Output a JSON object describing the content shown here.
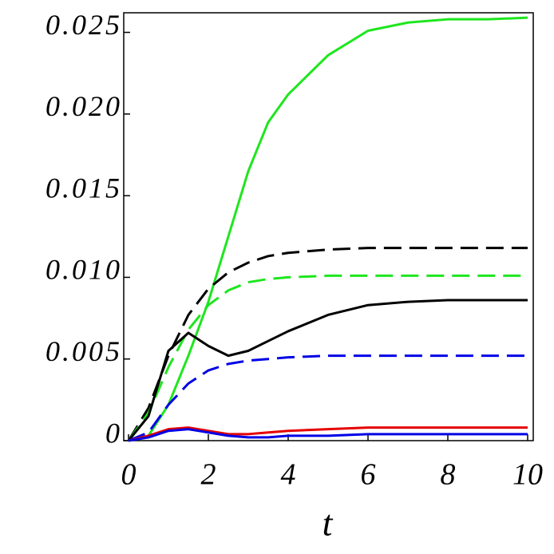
{
  "chart_data": {
    "type": "line",
    "x_label": "t",
    "x": [
      0,
      0.5,
      1,
      1.5,
      2,
      2.5,
      3,
      3.5,
      4,
      5,
      6,
      7,
      8,
      9,
      10
    ],
    "xlim": [
      -0.12,
      10.14
    ],
    "xticks": [
      0,
      2,
      4,
      6,
      8,
      10
    ],
    "ylim": [
      0,
      0.0262
    ],
    "yticks": [
      0,
      0.005,
      {
        "value": 0.01,
        "label": "0.010"
      },
      0.015,
      {
        "value": 0.02,
        "label": "0.020"
      },
      0.025
    ],
    "series": [
      {
        "color": "#1ee61e",
        "dashed": false,
        "values": [
          0,
          0.0003,
          0.0022,
          0.0052,
          0.0085,
          0.0125,
          0.0165,
          0.0195,
          0.0212,
          0.0236,
          0.0251,
          0.0256,
          0.0258,
          0.0258,
          0.0259
        ]
      },
      {
        "color": "#000000",
        "dashed": true,
        "values": [
          0,
          0.002,
          0.0052,
          0.0077,
          0.0093,
          0.0103,
          0.0109,
          0.0113,
          0.0115,
          0.0117,
          0.0118,
          0.0118,
          0.0118,
          0.0118,
          0.0118
        ]
      },
      {
        "color": "#1ee61e",
        "dashed": true,
        "values": [
          0,
          0.0017,
          0.0045,
          0.0068,
          0.0083,
          0.0092,
          0.0097,
          0.0099,
          0.01,
          0.0101,
          0.0101,
          0.0101,
          0.0101,
          0.0101,
          0.0101
        ]
      },
      {
        "color": "#000000",
        "dashed": false,
        "values": [
          0,
          0.0015,
          0.0055,
          0.0066,
          0.0058,
          0.0052,
          0.0055,
          0.0061,
          0.0067,
          0.0077,
          0.0083,
          0.0085,
          0.0086,
          0.0086,
          0.0086
        ]
      },
      {
        "color": "#0000e6",
        "dashed": true,
        "values": [
          0,
          0.0005,
          0.0022,
          0.0035,
          0.0043,
          0.0047,
          0.0049,
          0.005,
          0.0051,
          0.0052,
          0.0052,
          0.0052,
          0.0052,
          0.0052,
          0.0052
        ]
      },
      {
        "color": "#e60000",
        "dashed": false,
        "values": [
          0,
          0.0003,
          0.0007,
          0.0008,
          0.0006,
          0.0004,
          0.0004,
          0.0005,
          0.0006,
          0.0007,
          0.0008,
          0.0008,
          0.0008,
          0.0008,
          0.0008
        ]
      },
      {
        "color": "#0000e6",
        "dashed": false,
        "values": [
          0,
          0.0002,
          0.0006,
          0.0007,
          0.0005,
          0.0003,
          0.0002,
          0.0002,
          0.0003,
          0.0003,
          0.0004,
          0.0004,
          0.0004,
          0.0004,
          0.0004
        ]
      }
    ]
  }
}
